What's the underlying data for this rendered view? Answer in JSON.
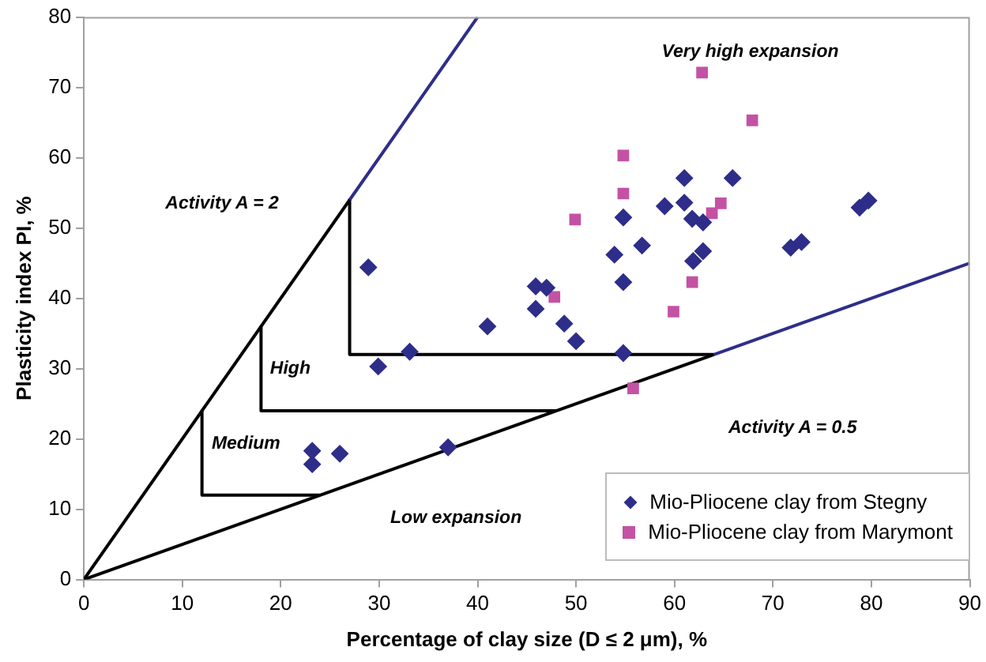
{
  "chart_data": {
    "type": "scatter",
    "xlabel": "Percentage of clay size (D ≤ 2 μm), %",
    "ylabel": "Plasticity index PI, %",
    "xlim": [
      0,
      90
    ],
    "xticks": [
      0,
      10,
      20,
      30,
      40,
      50,
      60,
      70,
      80,
      90
    ],
    "ylim": [
      0,
      80
    ],
    "yticks": [
      0,
      10,
      20,
      30,
      40,
      50,
      60,
      70,
      80
    ],
    "grid": false,
    "legend": "bottom right",
    "series": [
      {
        "type": "line",
        "color": "#000000",
        "marker": "none",
        "x": [
          0,
          27
        ],
        "values": [
          0,
          54
        ]
      },
      {
        "type": "line",
        "color": "#2e2e8a",
        "marker": "none",
        "x": [
          27,
          40
        ],
        "values": [
          54,
          80
        ]
      },
      {
        "type": "line",
        "color": "#000000",
        "marker": "none",
        "x": [
          0,
          64
        ],
        "values": [
          0,
          32
        ]
      },
      {
        "type": "line",
        "color": "#2e2e8a",
        "marker": "none",
        "x": [
          64,
          90
        ],
        "values": [
          32,
          45
        ]
      },
      {
        "type": "line",
        "color": "#000000",
        "marker": "none",
        "x": [
          27,
          27,
          64
        ],
        "values": [
          54,
          32,
          32
        ]
      },
      {
        "type": "line",
        "color": "#000000",
        "marker": "none",
        "x": [
          18,
          18,
          48
        ],
        "values": [
          36,
          24,
          24
        ]
      },
      {
        "type": "line",
        "color": "#000000",
        "marker": "none",
        "x": [
          12,
          12,
          24
        ],
        "values": [
          24,
          12,
          12
        ]
      },
      {
        "name": "Mio-Pliocene clay from Stegny",
        "color": "#2e2e8a",
        "marker": "diamond",
        "x": [
          28.9,
          33.1,
          29.9,
          41,
          45.9,
          47,
          45.9,
          48.8,
          50,
          54.8,
          53.9,
          56.7,
          54.8,
          54.8,
          61,
          65.9,
          59,
          61,
          61.8,
          62.9,
          62.9,
          61.9,
          71.8,
          72.9,
          78.8,
          79.7,
          23.2,
          23.2,
          26,
          37
        ],
        "values": [
          44.4,
          32.4,
          30.3,
          36,
          41.7,
          41.5,
          38.5,
          36.4,
          33.9,
          51.5,
          46.2,
          47.5,
          42.3,
          32.2,
          57.1,
          57.1,
          53.1,
          53.6,
          51.3,
          50.8,
          46.7,
          45.3,
          47.2,
          48,
          52.9,
          53.9,
          18.3,
          16.4,
          17.9,
          18.8
        ]
      },
      {
        "name": "Mio-Pliocene clay from Marymont",
        "color": "#c452a4",
        "marker": "square",
        "x": [
          54.8,
          54.8,
          49.9,
          47.8,
          62.8,
          67.9,
          64.7,
          63.8,
          61.8,
          59.9,
          55.8
        ],
        "values": [
          60.3,
          54.9,
          51.2,
          40.2,
          72.1,
          65.3,
          53.5,
          52.1,
          42.3,
          38.1,
          27.2
        ]
      }
    ],
    "annotations": [
      "Very high expansion",
      "Activity A = 2",
      "High",
      "Medium",
      "Low expansion",
      "Activity A = 0.5"
    ]
  }
}
